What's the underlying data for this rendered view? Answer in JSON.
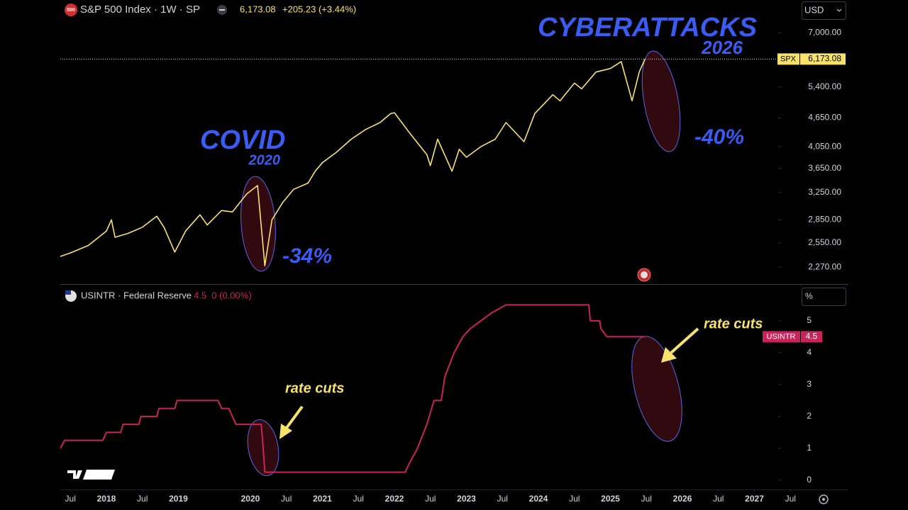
{
  "header": {
    "symbol": "S&P 500 Index · 1W · SP",
    "icon": "500",
    "price": "6,173.08",
    "change": "+205.23 (+3.44%)",
    "currency": "USD"
  },
  "chart_data": [
    {
      "type": "line",
      "log_scale": true,
      "x": [
        2017.36,
        2017.5,
        2017.75,
        2018.0,
        2018.07,
        2018.12,
        2018.3,
        2018.5,
        2018.7,
        2018.8,
        2018.95,
        2019.1,
        2019.3,
        2019.4,
        2019.6,
        2019.75,
        2019.95,
        2020.1,
        2020.2,
        2020.3,
        2020.45,
        2020.6,
        2020.8,
        2020.9,
        2021.0,
        2021.2,
        2021.4,
        2021.6,
        2021.8,
        2021.95,
        2022.0,
        2022.2,
        2022.45,
        2022.5,
        2022.6,
        2022.8,
        2022.9,
        2023.0,
        2023.2,
        2023.4,
        2023.55,
        2023.8,
        2023.95,
        2024.2,
        2024.3,
        2024.5,
        2024.6,
        2024.8,
        2025.0,
        2025.15,
        2025.3,
        2025.4,
        2025.48
      ],
      "series": [
        {
          "name": "SPX",
          "color": "#f7e26b",
          "values": [
            2390,
            2430,
            2520,
            2700,
            2850,
            2620,
            2670,
            2750,
            2900,
            2750,
            2440,
            2700,
            2920,
            2780,
            2980,
            2960,
            3230,
            3360,
            2285,
            2850,
            3100,
            3300,
            3400,
            3600,
            3750,
            3950,
            4200,
            4400,
            4550,
            4750,
            4770,
            4350,
            3900,
            3700,
            4200,
            3600,
            4000,
            3850,
            4050,
            4200,
            4550,
            4150,
            4750,
            5200,
            5050,
            5500,
            5350,
            5800,
            5900,
            6100,
            5050,
            5800,
            6173.08
          ]
        }
      ],
      "xlim": [
        2017.36,
        2027.31
      ],
      "ylim": [
        2100,
        8200
      ],
      "yticks": [
        {
          "value": 7000,
          "label": "7,000.00"
        },
        {
          "value": 5400,
          "label": "5,400.00"
        },
        {
          "value": 4650,
          "label": "4,650.00"
        },
        {
          "value": 4050,
          "label": "4,050.00"
        },
        {
          "value": 3650,
          "label": "3,650.00"
        },
        {
          "value": 3250,
          "label": "3,250.00"
        },
        {
          "value": 2850,
          "label": "2,850.00"
        },
        {
          "value": 2550,
          "label": "2,550.00"
        },
        {
          "value": 2270,
          "label": "2,270.00"
        }
      ],
      "last_price": {
        "name": "SPX",
        "value": 6173.08,
        "label": "6,173.08"
      },
      "annotations": [
        "CYBERATTACKS",
        "2026",
        "COVID",
        "2020",
        "-34%",
        "-40%"
      ]
    },
    {
      "type": "line",
      "log_scale": false,
      "header": {
        "symbol": "USINTR · Federal Reserve",
        "quote": "4.5  0 (0.00%)",
        "unit": "%"
      },
      "x": [
        2017.36,
        2017.42,
        2017.95,
        2018.0,
        2018.2,
        2018.23,
        2018.45,
        2018.48,
        2018.7,
        2018.73,
        2018.95,
        2018.98,
        2019.55,
        2019.6,
        2019.7,
        2019.75,
        2019.8,
        2020.15,
        2020.17,
        2020.2,
        2022.15,
        2022.2,
        2022.32,
        2022.45,
        2022.55,
        2022.65,
        2022.7,
        2022.83,
        2022.95,
        2023.05,
        2023.2,
        2023.35,
        2023.55,
        2024.7,
        2024.72,
        2024.85,
        2024.87,
        2024.95,
        2025.48
      ],
      "series": [
        {
          "name": "USINTR",
          "color": "#c8235a",
          "values": [
            1.0,
            1.25,
            1.25,
            1.5,
            1.5,
            1.75,
            1.75,
            2.0,
            2.0,
            2.25,
            2.25,
            2.5,
            2.5,
            2.25,
            2.25,
            2.0,
            1.75,
            1.75,
            1.25,
            0.25,
            0.25,
            0.5,
            1.0,
            1.75,
            2.5,
            2.5,
            3.25,
            4.0,
            4.5,
            4.75,
            5.0,
            5.25,
            5.5,
            5.5,
            5.0,
            5.0,
            4.75,
            4.5,
            4.5
          ]
        }
      ],
      "xlim": [
        2017.36,
        2027.31
      ],
      "ylim": [
        -0.27,
        6.11
      ],
      "yticks": [
        0,
        1,
        2,
        3,
        4,
        5
      ],
      "xticks": [
        {
          "value": 2017.5,
          "label": "Jul"
        },
        {
          "value": 2018,
          "label": "2018"
        },
        {
          "value": 2018.5,
          "label": "Jul"
        },
        {
          "value": 2019,
          "label": "2019"
        },
        {
          "value": 2020,
          "label": "2020"
        },
        {
          "value": 2020.5,
          "label": "Jul"
        },
        {
          "value": 2021,
          "label": "2021"
        },
        {
          "value": 2021.5,
          "label": "Jul"
        },
        {
          "value": 2022,
          "label": "2022"
        },
        {
          "value": 2022.5,
          "label": "Jul"
        },
        {
          "value": 2023,
          "label": "2023"
        },
        {
          "value": 2023.5,
          "label": "Jul"
        },
        {
          "value": 2024,
          "label": "2024"
        },
        {
          "value": 2024.5,
          "label": "Jul"
        },
        {
          "value": 2025,
          "label": "2025"
        },
        {
          "value": 2025.5,
          "label": "Jul"
        },
        {
          "value": 2026,
          "label": "2026"
        },
        {
          "value": 2026.5,
          "label": "Jul"
        },
        {
          "value": 2027,
          "label": "2027"
        },
        {
          "value": 2027.5,
          "label": "Jul"
        }
      ],
      "last_price": {
        "name": "USINTR",
        "value": 4.5
      },
      "annotations": [
        "rate cuts",
        "rate cuts"
      ]
    }
  ]
}
